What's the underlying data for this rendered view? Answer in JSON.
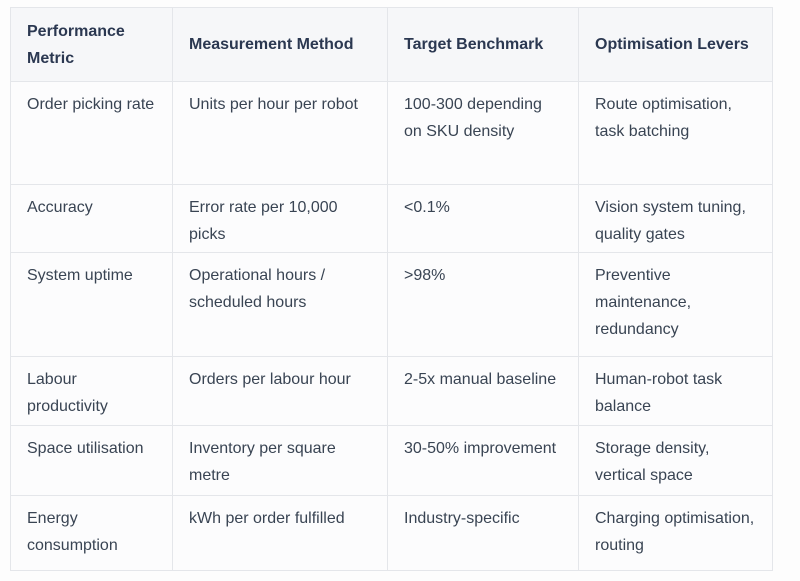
{
  "table": {
    "columns": [
      {
        "label": "Performance Metric"
      },
      {
        "label": "Measurement Method"
      },
      {
        "label": "Target Benchmark"
      },
      {
        "label": "Optimisation Levers"
      }
    ],
    "rows": [
      [
        "Order picking rate",
        "Units per hour per robot",
        "100-300 depending on SKU density",
        "Route optimisation, task batching"
      ],
      [
        "Accuracy",
        "Error rate per 10,000 picks",
        "<0.1%",
        "Vision system tuning, quality gates"
      ],
      [
        "System uptime",
        "Operational hours / scheduled hours",
        ">98%",
        "Preventive maintenance, redundancy"
      ],
      [
        "Labour productivity",
        "Orders per labour hour",
        "2-5x manual baseline",
        "Human-robot task balance"
      ],
      [
        "Space utilisation",
        "Inventory per square metre",
        "30-50% improvement",
        "Storage density, vertical space"
      ],
      [
        "Energy consumption",
        "kWh per order fulfilled",
        "Industry-specific",
        "Charging optimisation, routing"
      ]
    ],
    "colors": {
      "header_background": "#f6f7f9",
      "body_background": "#fcfcfd",
      "border": "#e4e6ea",
      "header_text": "#2b3851",
      "body_text": "#394453"
    }
  }
}
